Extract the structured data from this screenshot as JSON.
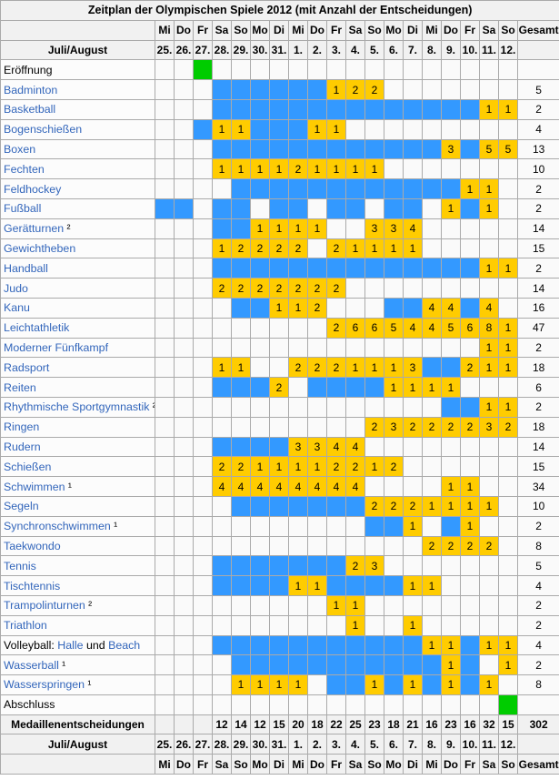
{
  "title": "Zeitplan der Olympischen Spiele 2012 (mit Anzahl der Entscheidungen)",
  "columns": {
    "month_label": "Juli/August",
    "total_label": "Gesamt",
    "days": [
      "Mi",
      "Do",
      "Fr",
      "Sa",
      "So",
      "Mo",
      "Di",
      "Mi",
      "Do",
      "Fr",
      "Sa",
      "So",
      "Mo",
      "Di",
      "Mi",
      "Do",
      "Fr",
      "Sa",
      "So"
    ],
    "dates": [
      "25.",
      "26.",
      "27.",
      "28.",
      "29.",
      "30.",
      "31.",
      "1.",
      "2.",
      "3.",
      "4.",
      "5.",
      "6.",
      "7.",
      "8.",
      "9.",
      "10.",
      "11.",
      "12."
    ]
  },
  "colors": {
    "competition_day": "#3399ff",
    "medal_decision": "#ffcc00",
    "ceremony": "#00cc00",
    "link": "#3366bb",
    "header_bg": "#f1f1f1",
    "border": "#aaaaaa"
  },
  "chart_data": {
    "type": "table",
    "title": "Zeitplan der Olympischen Spiele 2012 (mit Anzahl der Entscheidungen)",
    "x": [
      "25.",
      "26.",
      "27.",
      "28.",
      "29.",
      "30.",
      "31.",
      "1.",
      "2.",
      "3.",
      "4.",
      "5.",
      "6.",
      "7.",
      "8.",
      "9.",
      "10.",
      "11.",
      "12."
    ],
    "cell_legend": "B=Wettkampftag(blau), G=Zeremonie(gruen), Zahl=Anzahl Entscheidungen(gelb), leer=kein Wettkampf",
    "rows": [
      {
        "label": "Eröffnung",
        "link": false,
        "cells": [
          "",
          "",
          "G",
          "",
          "",
          "",
          "",
          "",
          "",
          "",
          "",
          "",
          "",
          "",
          "",
          "",
          "",
          "",
          ""
        ],
        "total": ""
      },
      {
        "label": "Badminton",
        "link": true,
        "cells": [
          "",
          "",
          "",
          "B",
          "B",
          "B",
          "B",
          "B",
          "B",
          "1",
          "2",
          "2",
          "",
          "",
          "",
          "",
          "",
          "",
          ""
        ],
        "total": "5"
      },
      {
        "label": "Basketball",
        "link": true,
        "cells": [
          "",
          "",
          "",
          "B",
          "B",
          "B",
          "B",
          "B",
          "B",
          "B",
          "B",
          "B",
          "B",
          "B",
          "B",
          "B",
          "B",
          "1",
          "1"
        ],
        "total": "2"
      },
      {
        "label": "Bogenschießen",
        "link": true,
        "cells": [
          "",
          "",
          "B",
          "1",
          "1",
          "B",
          "B",
          "B",
          "1",
          "1",
          "",
          "",
          "",
          "",
          "",
          "",
          "",
          "",
          ""
        ],
        "total": "4"
      },
      {
        "label": "Boxen",
        "link": true,
        "cells": [
          "",
          "",
          "",
          "B",
          "B",
          "B",
          "B",
          "B",
          "B",
          "B",
          "B",
          "B",
          "B",
          "B",
          "B",
          "3",
          "B",
          "5",
          "5"
        ],
        "total": "13"
      },
      {
        "label": "Fechten",
        "link": true,
        "cells": [
          "",
          "",
          "",
          "1",
          "1",
          "1",
          "1",
          "2",
          "1",
          "1",
          "1",
          "1",
          "",
          "",
          "",
          "",
          "",
          "",
          ""
        ],
        "total": "10"
      },
      {
        "label": "Feldhockey",
        "link": true,
        "cells": [
          "",
          "",
          "",
          "",
          "B",
          "B",
          "B",
          "B",
          "B",
          "B",
          "B",
          "B",
          "B",
          "B",
          "B",
          "B",
          "1",
          "1",
          ""
        ],
        "total": "2"
      },
      {
        "label": "Fußball",
        "link": true,
        "cells": [
          "B",
          "B",
          "",
          "B",
          "B",
          "",
          "B",
          "B",
          "",
          "B",
          "B",
          "",
          "B",
          "B",
          "",
          "1",
          "B",
          "1",
          ""
        ],
        "total": "2"
      },
      {
        "label": "Gerätturnen",
        "sup": "²",
        "link": true,
        "cells": [
          "",
          "",
          "",
          "B",
          "B",
          "1",
          "1",
          "1",
          "1",
          "",
          "",
          "3",
          "3",
          "4",
          "",
          "",
          "",
          "",
          ""
        ],
        "total": "14"
      },
      {
        "label": "Gewichtheben",
        "link": true,
        "cells": [
          "",
          "",
          "",
          "1",
          "2",
          "2",
          "2",
          "2",
          "",
          "2",
          "1",
          "1",
          "1",
          "1",
          "",
          "",
          "",
          "",
          ""
        ],
        "total": "15"
      },
      {
        "label": "Handball",
        "link": true,
        "cells": [
          "",
          "",
          "",
          "B",
          "B",
          "B",
          "B",
          "B",
          "B",
          "B",
          "B",
          "B",
          "B",
          "B",
          "B",
          "B",
          "B",
          "1",
          "1"
        ],
        "total": "2"
      },
      {
        "label": "Judo",
        "link": true,
        "cells": [
          "",
          "",
          "",
          "2",
          "2",
          "2",
          "2",
          "2",
          "2",
          "2",
          "",
          "",
          "",
          "",
          "",
          "",
          "",
          "",
          ""
        ],
        "total": "14"
      },
      {
        "label": "Kanu",
        "link": true,
        "cells": [
          "",
          "",
          "",
          "",
          "B",
          "B",
          "1",
          "1",
          "2",
          "",
          "",
          "",
          "B",
          "B",
          "4",
          "4",
          "B",
          "4",
          ""
        ],
        "total": "16"
      },
      {
        "label": "Leichtathletik",
        "link": true,
        "cells": [
          "",
          "",
          "",
          "",
          "",
          "",
          "",
          "",
          "",
          "2",
          "6",
          "6",
          "5",
          "4",
          "4",
          "5",
          "6",
          "8",
          "1"
        ],
        "total": "47"
      },
      {
        "label": "Moderner Fünfkampf",
        "link": true,
        "cells": [
          "",
          "",
          "",
          "",
          "",
          "",
          "",
          "",
          "",
          "",
          "",
          "",
          "",
          "",
          "",
          "",
          "",
          "1",
          "1"
        ],
        "total": "2"
      },
      {
        "label": "Radsport",
        "link": true,
        "cells": [
          "",
          "",
          "",
          "1",
          "1",
          "",
          "",
          "2",
          "2",
          "2",
          "1",
          "1",
          "1",
          "3",
          "B",
          "B",
          "2",
          "1",
          "1"
        ],
        "total": "18"
      },
      {
        "label": "Reiten",
        "link": true,
        "cells": [
          "",
          "",
          "",
          "B",
          "B",
          "B",
          "2",
          "",
          "B",
          "B",
          "B",
          "B",
          "1",
          "1",
          "1",
          "1",
          "",
          "",
          ""
        ],
        "total": "6"
      },
      {
        "label": "Rhythmische Sportgymnastik",
        "sup": "²",
        "link": true,
        "cells": [
          "",
          "",
          "",
          "",
          "",
          "",
          "",
          "",
          "",
          "",
          "",
          "",
          "",
          "",
          "",
          "B",
          "B",
          "1",
          "1"
        ],
        "total": "2"
      },
      {
        "label": "Ringen",
        "link": true,
        "cells": [
          "",
          "",
          "",
          "",
          "",
          "",
          "",
          "",
          "",
          "",
          "",
          "2",
          "3",
          "2",
          "2",
          "2",
          "2",
          "3",
          "2"
        ],
        "total": "18"
      },
      {
        "label": "Rudern",
        "link": true,
        "cells": [
          "",
          "",
          "",
          "B",
          "B",
          "B",
          "B",
          "3",
          "3",
          "4",
          "4",
          "",
          "",
          "",
          "",
          "",
          "",
          "",
          ""
        ],
        "total": "14"
      },
      {
        "label": "Schießen",
        "link": true,
        "cells": [
          "",
          "",
          "",
          "2",
          "2",
          "1",
          "1",
          "1",
          "1",
          "2",
          "2",
          "1",
          "2",
          "",
          "",
          "",
          "",
          "",
          ""
        ],
        "total": "15"
      },
      {
        "label": "Schwimmen",
        "sup": "¹",
        "link": true,
        "cells": [
          "",
          "",
          "",
          "4",
          "4",
          "4",
          "4",
          "4",
          "4",
          "4",
          "4",
          "",
          "",
          "",
          "",
          "1",
          "1",
          "",
          ""
        ],
        "total": "34"
      },
      {
        "label": "Segeln",
        "link": true,
        "cells": [
          "",
          "",
          "",
          "",
          "B",
          "B",
          "B",
          "B",
          "B",
          "B",
          "B",
          "2",
          "2",
          "2",
          "1",
          "1",
          "1",
          "1",
          ""
        ],
        "total": "10"
      },
      {
        "label": "Synchronschwimmen",
        "sup": "¹",
        "link": true,
        "cells": [
          "",
          "",
          "",
          "",
          "",
          "",
          "",
          "",
          "",
          "",
          "",
          "B",
          "B",
          "1",
          "",
          "B",
          "1",
          "",
          ""
        ],
        "total": "2"
      },
      {
        "label": "Taekwondo",
        "link": true,
        "cells": [
          "",
          "",
          "",
          "",
          "",
          "",
          "",
          "",
          "",
          "",
          "",
          "",
          "",
          "",
          "2",
          "2",
          "2",
          "2",
          ""
        ],
        "total": "8"
      },
      {
        "label": "Tennis",
        "link": true,
        "cells": [
          "",
          "",
          "",
          "B",
          "B",
          "B",
          "B",
          "B",
          "B",
          "B",
          "2",
          "3",
          "",
          "",
          "",
          "",
          "",
          "",
          ""
        ],
        "total": "5"
      },
      {
        "label": "Tischtennis",
        "link": true,
        "cells": [
          "",
          "",
          "",
          "B",
          "B",
          "B",
          "B",
          "1",
          "1",
          "B",
          "B",
          "B",
          "B",
          "1",
          "1",
          "",
          "",
          "",
          ""
        ],
        "total": "4"
      },
      {
        "label": "Trampolinturnen",
        "sup": "²",
        "link": true,
        "cells": [
          "",
          "",
          "",
          "",
          "",
          "",
          "",
          "",
          "",
          "1",
          "1",
          "",
          "",
          "",
          "",
          "",
          "",
          "",
          ""
        ],
        "total": "2"
      },
      {
        "label": "Triathlon",
        "link": true,
        "cells": [
          "",
          "",
          "",
          "",
          "",
          "",
          "",
          "",
          "",
          "",
          "1",
          "",
          "",
          "1",
          "",
          "",
          "",
          "",
          ""
        ],
        "total": "2"
      },
      {
        "label": "Volleyball: Halle und Beach",
        "link": true,
        "parts": [
          {
            "t": "Volleyball: ",
            "link": false
          },
          {
            "t": "Halle",
            "link": true
          },
          {
            "t": " und ",
            "link": false
          },
          {
            "t": "Beach",
            "link": true
          }
        ],
        "cells": [
          "",
          "",
          "",
          "B",
          "B",
          "B",
          "B",
          "B",
          "B",
          "B",
          "B",
          "B",
          "B",
          "B",
          "1",
          "1",
          "B",
          "1",
          "1"
        ],
        "total": "4"
      },
      {
        "label": "Wasserball",
        "sup": "¹",
        "link": true,
        "cells": [
          "",
          "",
          "",
          "",
          "B",
          "B",
          "B",
          "B",
          "B",
          "B",
          "B",
          "B",
          "B",
          "B",
          "B",
          "1",
          "B",
          "",
          "1"
        ],
        "total": "2"
      },
      {
        "label": "Wasserspringen",
        "sup": "¹",
        "link": true,
        "cells": [
          "",
          "",
          "",
          "",
          "1",
          "1",
          "1",
          "1",
          "",
          "B",
          "B",
          "1",
          "B",
          "1",
          "B",
          "1",
          "B",
          "1",
          ""
        ],
        "total": "8"
      },
      {
        "label": "Abschluss",
        "link": false,
        "cells": [
          "",
          "",
          "",
          "",
          "",
          "",
          "",
          "",
          "",
          "",
          "",
          "",
          "",
          "",
          "",
          "",
          "",
          "",
          "G"
        ],
        "total": ""
      }
    ],
    "totals_row": {
      "label": "Medaillenentscheidungen",
      "cells": [
        "",
        "",
        "",
        "12",
        "14",
        "12",
        "15",
        "20",
        "18",
        "22",
        "25",
        "23",
        "18",
        "21",
        "16",
        "23",
        "16",
        "32",
        "15"
      ],
      "total": "302"
    }
  }
}
